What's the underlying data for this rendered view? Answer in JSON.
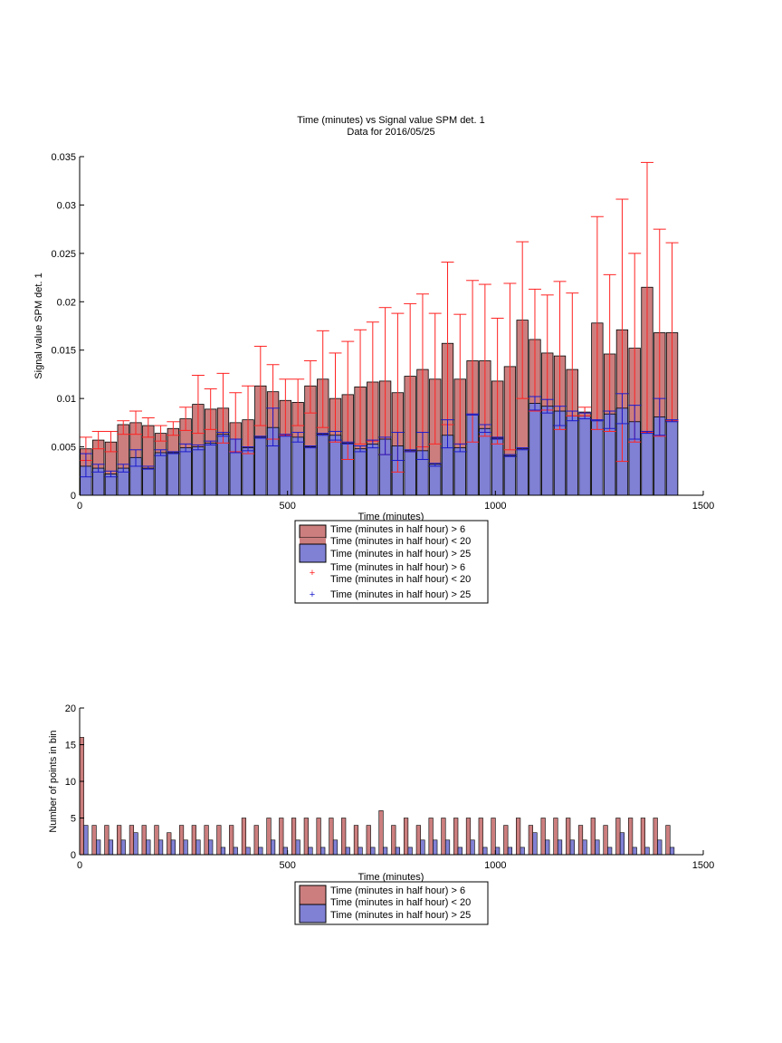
{
  "figure": {
    "title_line1": "Time (minutes) vs Signal value SPM det. 1",
    "title_line2": "Data for 2016/05/25",
    "colors": {
      "red_bar": "#cc7e7e",
      "blue_bar": "#8080d4",
      "red_err": "#ff2222",
      "blue_err": "#1a1acc",
      "outline": "#000000"
    }
  },
  "chart_data": [
    {
      "type": "bar",
      "title": "Time (minutes) vs Signal value SPM det. 1",
      "subtitle": "Data for 2016/05/25",
      "xlabel": "Time (minutes)",
      "ylabel": "Signal value SPM det. 1",
      "xlim": [
        0,
        1500
      ],
      "ylim": [
        0,
        0.035
      ],
      "xticks": [
        "0",
        "500",
        "1000",
        "1500"
      ],
      "yticks": [
        "0",
        "0.005",
        "0.01",
        "0.015",
        "0.02",
        "0.025",
        "0.03",
        "0.035"
      ],
      "x": [
        15,
        45,
        75,
        105,
        135,
        165,
        195,
        225,
        255,
        285,
        315,
        345,
        375,
        405,
        435,
        465,
        495,
        525,
        555,
        585,
        615,
        645,
        675,
        705,
        735,
        765,
        795,
        825,
        855,
        885,
        915,
        945,
        975,
        1005,
        1035,
        1065,
        1095,
        1125,
        1155,
        1185,
        1215,
        1245,
        1275,
        1305,
        1335,
        1365,
        1395,
        1425
      ],
      "grid": false,
      "legend_position": "below",
      "legend": [
        "Time (minutes in half hour) > 6",
        "Time (minutes in half hour) < 20",
        "Time (minutes in half hour) > 25",
        "Time (minutes in half hour) > 6",
        "Time (minutes in half hour) < 20",
        "Time (minutes in half hour) > 25"
      ],
      "series": [
        {
          "color": "#cc7e7e",
          "values": [
            0.0048,
            0.0057,
            0.0055,
            0.0073,
            0.0075,
            0.0072,
            0.0064,
            0.0069,
            0.0079,
            0.0094,
            0.0089,
            0.009,
            0.0075,
            0.0078,
            0.0113,
            0.0107,
            0.0098,
            0.0096,
            0.0113,
            0.012,
            0.01,
            0.0104,
            0.0112,
            0.0117,
            0.0118,
            0.0106,
            0.0123,
            0.013,
            0.012,
            0.0157,
            0.012,
            0.0139,
            0.0139,
            0.0118,
            0.0133,
            0.0181,
            0.0161,
            0.0147,
            0.0144,
            0.013,
            0.0086,
            0.0178,
            0.0146,
            0.0171,
            0.0152,
            0.0215,
            0.0168,
            0.0168
          ],
          "err_low": [
            0.0036,
            0.0048,
            0.0045,
            0.0063,
            0.0063,
            0.006,
            0.0056,
            0.0062,
            0.0067,
            0.0064,
            0.0068,
            0.0054,
            0.0045,
            0.0043,
            0.0072,
            0.0058,
            0.0062,
            0.0072,
            0.0085,
            0.007,
            0.0055,
            0.0037,
            0.0053,
            0.0056,
            0.0042,
            0.0024,
            0.0045,
            0.005,
            0.0053,
            0.0073,
            0.0053,
            0.0055,
            0.0061,
            0.0053,
            0.0047,
            0.01,
            0.0087,
            0.0088,
            0.0068,
            0.0082,
            0.0082,
            0.0068,
            0.0066,
            0.0035,
            0.0055,
            0.0065,
            0.0061,
            0.0077
          ],
          "err_high": [
            0.006,
            0.0066,
            0.0066,
            0.0077,
            0.0087,
            0.008,
            0.0072,
            0.0076,
            0.0091,
            0.0124,
            0.011,
            0.0126,
            0.0106,
            0.0113,
            0.0154,
            0.0135,
            0.012,
            0.012,
            0.0139,
            0.017,
            0.0147,
            0.0159,
            0.0171,
            0.0179,
            0.0194,
            0.0188,
            0.0198,
            0.0208,
            0.0188,
            0.0241,
            0.0187,
            0.0222,
            0.0218,
            0.0183,
            0.0219,
            0.0262,
            0.0213,
            0.0207,
            0.0221,
            0.0209,
            0.0091,
            0.0288,
            0.0228,
            0.0306,
            0.025,
            0.0344,
            0.0275,
            0.0261
          ]
        },
        {
          "color": "#8080d4",
          "values": [
            0.003,
            0.0028,
            0.0022,
            0.0028,
            0.0039,
            0.0028,
            0.0044,
            0.0044,
            0.0049,
            0.005,
            0.0054,
            0.0063,
            0.0058,
            0.0049,
            0.006,
            0.007,
            0.0062,
            0.006,
            0.005,
            0.0063,
            0.0062,
            0.0054,
            0.0048,
            0.0053,
            0.0058,
            0.0051,
            0.0046,
            0.0046,
            0.0032,
            0.0062,
            0.0049,
            0.0083,
            0.0069,
            0.0059,
            0.0041,
            0.0048,
            0.0095,
            0.0092,
            0.0087,
            0.0082,
            0.0082,
            0.0077,
            0.0084,
            0.009,
            0.0076,
            0.0065,
            0.0081,
            0.0077
          ],
          "err_low": [
            0.0019,
            0.0024,
            0.0019,
            0.0024,
            0.003,
            0.0027,
            0.0041,
            0.0043,
            0.0045,
            0.0047,
            0.0052,
            0.0061,
            0.0044,
            0.0046,
            0.0059,
            0.0051,
            0.0061,
            0.0055,
            0.0049,
            0.0062,
            0.0057,
            0.0053,
            0.0045,
            0.0049,
            0.0042,
            0.0036,
            0.0045,
            0.0037,
            0.003,
            0.0049,
            0.0045,
            0.0083,
            0.0065,
            0.0058,
            0.004,
            0.0047,
            0.0088,
            0.0085,
            0.0072,
            0.0077,
            0.0079,
            0.0077,
            0.0069,
            0.0074,
            0.0058,
            0.0064,
            0.0062,
            0.0076
          ],
          "err_high": [
            0.0043,
            0.0032,
            0.0025,
            0.0032,
            0.0047,
            0.003,
            0.0047,
            0.0045,
            0.0053,
            0.0052,
            0.0056,
            0.0065,
            0.0058,
            0.005,
            0.0061,
            0.009,
            0.0063,
            0.0065,
            0.0051,
            0.0064,
            0.0066,
            0.0055,
            0.0051,
            0.0057,
            0.006,
            0.0065,
            0.0047,
            0.0065,
            0.0033,
            0.0078,
            0.0053,
            0.0084,
            0.0073,
            0.006,
            0.0042,
            0.0049,
            0.0102,
            0.0099,
            0.0092,
            0.0087,
            0.0085,
            0.0078,
            0.0087,
            0.0105,
            0.0093,
            0.0066,
            0.01,
            0.0078
          ]
        }
      ]
    },
    {
      "type": "bar",
      "xlabel": "Time (minutes)",
      "ylabel": "Number of points in bin",
      "xlim": [
        0,
        1500
      ],
      "ylim": [
        0,
        20
      ],
      "xticks": [
        "0",
        "500",
        "1000",
        "1500"
      ],
      "yticks": [
        "0",
        "5",
        "10",
        "15",
        "20"
      ],
      "x": [
        0,
        30,
        60,
        90,
        120,
        150,
        180,
        210,
        240,
        270,
        300,
        330,
        360,
        390,
        420,
        450,
        480,
        510,
        540,
        570,
        600,
        630,
        660,
        690,
        720,
        750,
        780,
        810,
        840,
        870,
        900,
        930,
        960,
        990,
        1020,
        1050,
        1080,
        1110,
        1140,
        1170,
        1200,
        1230,
        1260,
        1290,
        1320,
        1350,
        1380,
        1410
      ],
      "grid": false,
      "legend_position": "below",
      "legend": [
        "Time (minutes in half hour) > 6",
        "Time (minutes in half hour) < 20",
        "Time (minutes in half hour) > 25"
      ],
      "series": [
        {
          "color": "#cc7e7e",
          "values": [
            16,
            4,
            4,
            4,
            4,
            4,
            4,
            3,
            4,
            4,
            4,
            4,
            4,
            5,
            4,
            5,
            5,
            5,
            5,
            5,
            5,
            5,
            4,
            4,
            6,
            4,
            5,
            4,
            5,
            5,
            5,
            5,
            5,
            5,
            4,
            5,
            4,
            5,
            5,
            5,
            4,
            5,
            4,
            5,
            5,
            5,
            5,
            4
          ]
        },
        {
          "color": "#8080d4",
          "values": [
            4,
            2,
            2,
            2,
            3,
            2,
            2,
            2,
            2,
            2,
            2,
            1,
            1,
            1,
            1,
            2,
            1,
            2,
            1,
            1,
            2,
            1,
            1,
            1,
            1,
            1,
            1,
            2,
            2,
            2,
            1,
            2,
            1,
            1,
            1,
            1,
            3,
            2,
            2,
            2,
            2,
            2,
            1,
            3,
            1,
            1,
            2,
            1
          ]
        }
      ]
    }
  ]
}
